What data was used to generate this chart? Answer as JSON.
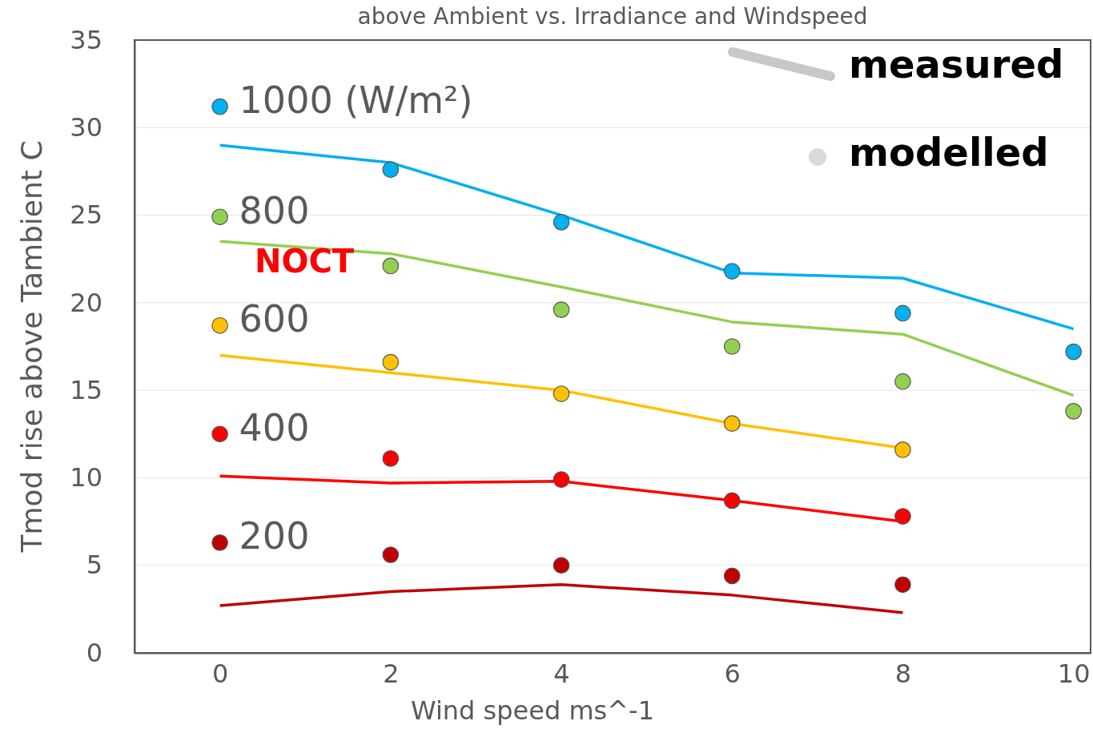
{
  "chart_data": {
    "type": "line",
    "title": "above Ambient vs. Irradiance and Windspeed",
    "xlabel": "Wind speed ms^-1",
    "ylabel": "Tmod rise above Tambient C",
    "x": [
      0,
      2,
      4,
      6,
      8,
      10
    ],
    "xlim": [
      -1,
      10.2
    ],
    "xticks": [
      0,
      2,
      4,
      6,
      8,
      10
    ],
    "ylim": [
      0,
      35
    ],
    "yticks": [
      0,
      5,
      10,
      15,
      20,
      25,
      30,
      35
    ],
    "grid": "y",
    "line_style": "solid",
    "series": [
      {
        "name": "1000 (W/m²)",
        "color": "#00b0f0",
        "values": [
          29.0,
          28.0,
          25.0,
          21.7,
          21.4,
          18.5
        ]
      },
      {
        "name": "800",
        "color": "#92d050",
        "values": [
          23.5,
          22.8,
          20.9,
          18.9,
          18.2,
          14.7
        ]
      },
      {
        "name": "600",
        "color": "#ffc000",
        "values": [
          17.0,
          16.0,
          15.0,
          13.1,
          11.7,
          null
        ]
      },
      {
        "name": "400",
        "color": "#ff0000",
        "values": [
          10.1,
          9.7,
          9.8,
          8.7,
          7.5,
          null
        ]
      },
      {
        "name": "200",
        "color": "#c00000",
        "values": [
          2.7,
          3.5,
          3.9,
          3.3,
          2.3,
          null
        ]
      },
      {
        "type": "scatter",
        "marker": "circle",
        "color": "#00b0f0",
        "values": [
          31.2,
          27.6,
          24.6,
          21.8,
          19.4,
          17.2
        ]
      },
      {
        "type": "scatter",
        "marker": "circle",
        "color": "#92d050",
        "values": [
          24.9,
          22.1,
          19.6,
          17.5,
          15.5,
          13.8
        ]
      },
      {
        "type": "scatter",
        "marker": "circle",
        "color": "#ffc000",
        "values": [
          18.7,
          16.6,
          14.8,
          13.1,
          11.6,
          null
        ]
      },
      {
        "type": "scatter",
        "marker": "circle",
        "color": "#ff0000",
        "values": [
          12.5,
          11.1,
          9.9,
          8.7,
          7.8,
          null
        ]
      },
      {
        "type": "scatter",
        "marker": "circle",
        "color": "#c00000",
        "values": [
          6.3,
          5.6,
          5.0,
          4.4,
          3.9,
          null
        ]
      }
    ],
    "annotations": [
      "measured",
      "modelled",
      "NOCT"
    ]
  }
}
